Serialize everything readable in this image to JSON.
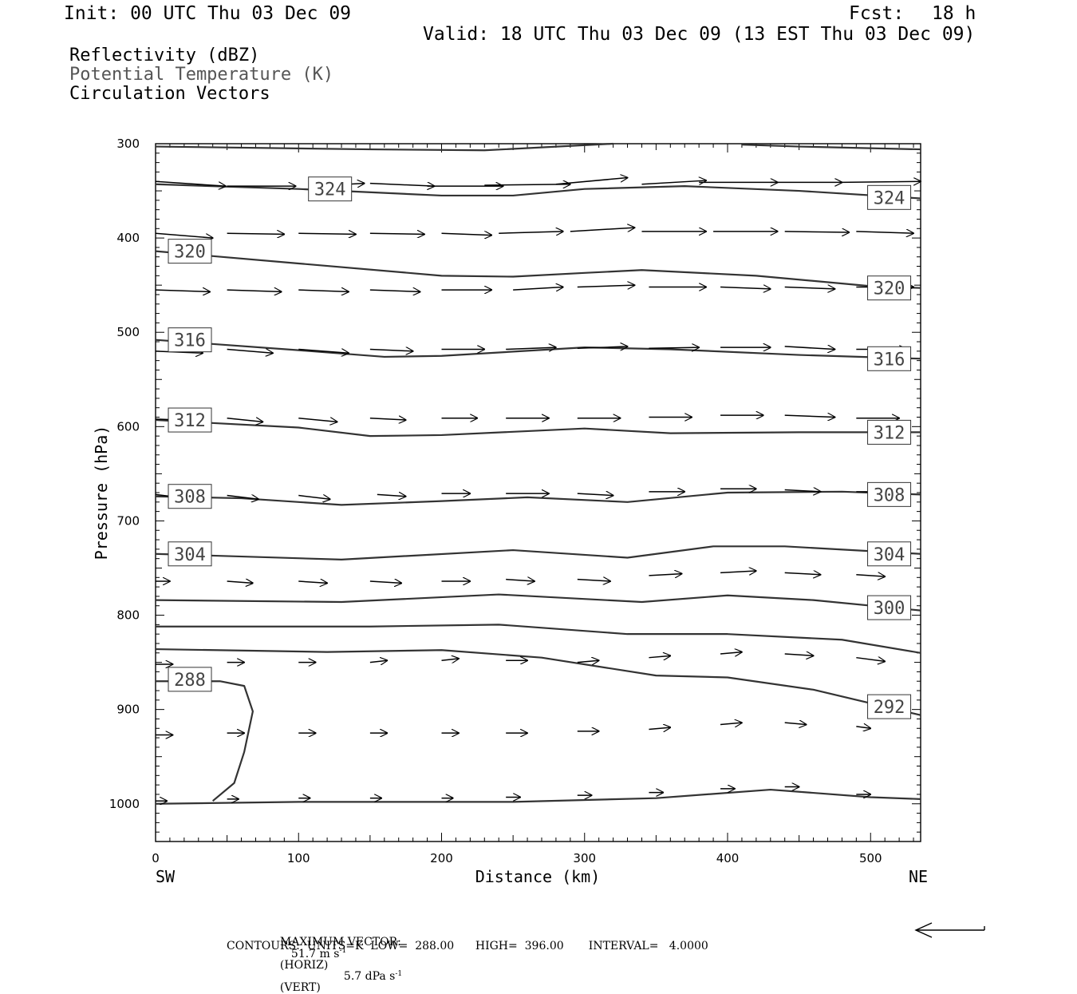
{
  "header": {
    "init": "Init: 00 UTC Thu 03 Dec 09",
    "fcst_label": "Fcst:",
    "fcst_value": "18 h",
    "valid": "Valid: 18 UTC Thu 03 Dec 09 (13 EST Thu 03 Dec 09)"
  },
  "legend": {
    "items": [
      "Reflectivity (dBZ)",
      "Potential Temperature (K)",
      "Circulation Vectors"
    ],
    "colors": [
      "#000000",
      "#555555",
      "#000000"
    ]
  },
  "footer": {
    "max_vector_label": "MAXIMUM VECTOR:",
    "horiz_value": "51.7 m s",
    "horiz_exp": "-1",
    "horiz_tag": "(HORIZ)",
    "vert_value": "5.7 dPa s",
    "vert_exp": "-1",
    "vert_tag": "(VERT)",
    "contours": "CONTOURS:  UNITS=K  LOW=  288.00      HIGH=  396.00       INTERVAL=   4.0000"
  },
  "chart_data": {
    "type": "line",
    "xlabel": "Distance (km)",
    "ylabel": "Pressure (hPa)",
    "xlim": [
      0,
      535
    ],
    "ylim": [
      1040,
      300
    ],
    "x_ticks": [
      0,
      100,
      200,
      300,
      400,
      500
    ],
    "y_ticks": [
      300,
      400,
      500,
      600,
      700,
      800,
      900,
      1000
    ],
    "x_end_labels": {
      "left": "SW",
      "right": "NE"
    },
    "contour_color": "#333333",
    "series": [
      {
        "label": "324",
        "points": [
          [
            0,
            343
          ],
          [
            100,
            348
          ],
          [
            200,
            355
          ],
          [
            250,
            355
          ],
          [
            300,
            348
          ],
          [
            370,
            345
          ],
          [
            450,
            350
          ],
          [
            535,
            358
          ]
        ]
      },
      {
        "label": "320",
        "points": [
          [
            0,
            414
          ],
          [
            100,
            427
          ],
          [
            200,
            440
          ],
          [
            250,
            441
          ],
          [
            300,
            437
          ],
          [
            340,
            434
          ],
          [
            420,
            440
          ],
          [
            500,
            451
          ],
          [
            535,
            453
          ]
        ]
      },
      {
        "label": "316",
        "points": [
          [
            0,
            508
          ],
          [
            100,
            519
          ],
          [
            160,
            526
          ],
          [
            200,
            525
          ],
          [
            300,
            516
          ],
          [
            360,
            518
          ],
          [
            450,
            524
          ],
          [
            535,
            528
          ]
        ]
      },
      {
        "label": "312",
        "points": [
          [
            0,
            593
          ],
          [
            100,
            601
          ],
          [
            150,
            610
          ],
          [
            200,
            609
          ],
          [
            300,
            602
          ],
          [
            360,
            607
          ],
          [
            450,
            606
          ],
          [
            535,
            606
          ]
        ]
      },
      {
        "label": "308",
        "points": [
          [
            0,
            674
          ],
          [
            60,
            676
          ],
          [
            130,
            683
          ],
          [
            200,
            679
          ],
          [
            260,
            675
          ],
          [
            330,
            680
          ],
          [
            400,
            670
          ],
          [
            480,
            669
          ],
          [
            535,
            672
          ]
        ]
      },
      {
        "label": "304",
        "points": [
          [
            0,
            735
          ],
          [
            130,
            741
          ],
          [
            250,
            731
          ],
          [
            330,
            739
          ],
          [
            390,
            727
          ],
          [
            440,
            727
          ],
          [
            535,
            735
          ]
        ]
      },
      {
        "label": "300",
        "points": [
          [
            0,
            784
          ],
          [
            130,
            786
          ],
          [
            240,
            778
          ],
          [
            340,
            786
          ],
          [
            400,
            779
          ],
          [
            460,
            784
          ],
          [
            535,
            795
          ]
        ]
      },
      {
        "label": "",
        "points": [
          [
            0,
            812
          ],
          [
            150,
            812
          ],
          [
            240,
            810
          ],
          [
            330,
            820
          ],
          [
            400,
            820
          ],
          [
            480,
            826
          ],
          [
            535,
            840
          ]
        ]
      },
      {
        "label": "292",
        "points": [
          [
            0,
            836
          ],
          [
            120,
            839
          ],
          [
            200,
            837
          ],
          [
            270,
            845
          ],
          [
            350,
            864
          ],
          [
            400,
            866
          ],
          [
            460,
            879
          ],
          [
            535,
            906
          ]
        ]
      },
      {
        "label": "288",
        "points": [
          [
            0,
            870
          ],
          [
            45,
            870
          ],
          [
            62,
            875
          ],
          [
            68,
            902
          ],
          [
            62,
            945
          ],
          [
            55,
            978
          ],
          [
            40,
            997
          ]
        ]
      },
      {
        "label": "",
        "points": [
          [
            0,
            1000
          ],
          [
            100,
            998
          ],
          [
            250,
            998
          ],
          [
            350,
            994
          ],
          [
            430,
            985
          ],
          [
            500,
            993
          ],
          [
            535,
            995
          ]
        ]
      },
      {
        "label": "",
        "points": [
          [
            0,
            303
          ],
          [
            150,
            306
          ],
          [
            230,
            307
          ],
          [
            320,
            300
          ]
        ]
      },
      {
        "label": "",
        "points": [
          [
            410,
            301
          ],
          [
            450,
            303
          ],
          [
            535,
            306
          ]
        ]
      }
    ],
    "vectors": [
      {
        "pressure": 345,
        "arrows": [
          [
            0,
            340,
            49,
            345
          ],
          [
            50,
            345,
            98,
            345
          ],
          [
            110,
            345,
            146,
            342
          ],
          [
            150,
            342,
            195,
            345
          ],
          [
            190,
            345,
            243,
            345
          ],
          [
            230,
            344,
            290,
            343
          ],
          [
            280,
            343,
            330,
            336
          ],
          [
            340,
            343,
            385,
            339
          ],
          [
            380,
            341,
            435,
            341
          ],
          [
            430,
            341,
            480,
            341
          ],
          [
            480,
            341,
            535,
            340
          ]
        ]
      },
      {
        "pressure": 395,
        "arrows": [
          [
            0,
            395,
            40,
            400
          ],
          [
            50,
            395,
            90,
            396
          ],
          [
            100,
            395,
            140,
            396
          ],
          [
            150,
            395,
            188,
            396
          ],
          [
            200,
            395,
            235,
            397
          ],
          [
            240,
            395,
            285,
            393
          ],
          [
            290,
            393,
            335,
            389
          ],
          [
            340,
            393,
            385,
            393
          ],
          [
            390,
            393,
            435,
            393
          ],
          [
            440,
            393,
            485,
            394
          ],
          [
            490,
            393,
            530,
            395
          ]
        ]
      },
      {
        "pressure": 455,
        "arrows": [
          [
            0,
            455,
            38,
            457
          ],
          [
            50,
            455,
            88,
            457
          ],
          [
            100,
            455,
            135,
            457
          ],
          [
            150,
            455,
            185,
            457
          ],
          [
            200,
            455,
            235,
            455
          ],
          [
            250,
            455,
            285,
            452
          ],
          [
            295,
            452,
            335,
            450
          ],
          [
            345,
            452,
            385,
            452
          ],
          [
            395,
            452,
            430,
            454
          ],
          [
            440,
            452,
            475,
            454
          ],
          [
            490,
            452,
            530,
            452
          ]
        ]
      },
      {
        "pressure": 520,
        "arrows": [
          [
            0,
            520,
            33,
            522
          ],
          [
            50,
            518,
            82,
            522
          ],
          [
            100,
            518,
            135,
            522
          ],
          [
            150,
            518,
            180,
            520
          ],
          [
            200,
            518,
            230,
            518
          ],
          [
            245,
            518,
            280,
            516
          ],
          [
            295,
            517,
            330,
            515
          ],
          [
            345,
            517,
            380,
            516
          ],
          [
            395,
            516,
            430,
            516
          ],
          [
            440,
            515,
            475,
            518
          ],
          [
            490,
            518,
            525,
            518
          ]
        ]
      },
      {
        "pressure": 593,
        "arrows": [
          [
            0,
            592,
            35,
            594
          ],
          [
            50,
            591,
            75,
            595
          ],
          [
            100,
            591,
            127,
            595
          ],
          [
            150,
            591,
            175,
            593
          ],
          [
            200,
            591,
            225,
            591
          ],
          [
            245,
            591,
            275,
            591
          ],
          [
            295,
            591,
            325,
            591
          ],
          [
            345,
            590,
            375,
            590
          ],
          [
            395,
            588,
            425,
            588
          ],
          [
            440,
            588,
            475,
            590
          ],
          [
            490,
            591,
            520,
            591
          ]
        ]
      },
      {
        "pressure": 675,
        "arrows": [
          [
            0,
            672,
            22,
            676
          ],
          [
            50,
            673,
            72,
            677
          ],
          [
            100,
            673,
            122,
            677
          ],
          [
            155,
            672,
            175,
            674
          ],
          [
            200,
            671,
            220,
            671
          ],
          [
            245,
            671,
            275,
            671
          ],
          [
            295,
            671,
            320,
            673
          ],
          [
            345,
            669,
            370,
            669
          ],
          [
            395,
            666,
            420,
            666
          ],
          [
            440,
            667,
            465,
            669
          ],
          [
            490,
            669,
            515,
            669
          ]
        ]
      },
      {
        "pressure": 765,
        "arrows": [
          [
            0,
            764,
            10,
            764
          ],
          [
            50,
            764,
            68,
            766
          ],
          [
            100,
            764,
            120,
            766
          ],
          [
            150,
            764,
            172,
            766
          ],
          [
            200,
            764,
            220,
            764
          ],
          [
            245,
            762,
            265,
            764
          ],
          [
            295,
            762,
            318,
            764
          ],
          [
            345,
            758,
            368,
            756
          ],
          [
            395,
            755,
            420,
            753
          ],
          [
            440,
            755,
            465,
            757
          ],
          [
            490,
            757,
            510,
            759
          ]
        ]
      },
      {
        "pressure": 850,
        "arrows": [
          [
            0,
            852,
            12,
            852
          ],
          [
            50,
            850,
            62,
            850
          ],
          [
            100,
            850,
            112,
            850
          ],
          [
            150,
            850,
            162,
            848
          ],
          [
            200,
            848,
            212,
            846
          ],
          [
            245,
            848,
            260,
            848
          ],
          [
            295,
            850,
            310,
            848
          ],
          [
            345,
            845,
            360,
            843
          ],
          [
            395,
            841,
            410,
            839
          ],
          [
            440,
            841,
            460,
            843
          ],
          [
            490,
            845,
            510,
            849
          ]
        ]
      },
      {
        "pressure": 925,
        "arrows": [
          [
            0,
            927,
            12,
            927
          ],
          [
            50,
            925,
            62,
            925
          ],
          [
            100,
            925,
            112,
            925
          ],
          [
            150,
            925,
            162,
            925
          ],
          [
            200,
            925,
            212,
            925
          ],
          [
            245,
            925,
            260,
            925
          ],
          [
            295,
            923,
            310,
            923
          ],
          [
            345,
            921,
            360,
            919
          ],
          [
            395,
            916,
            410,
            914
          ],
          [
            440,
            914,
            455,
            916
          ],
          [
            490,
            918,
            500,
            920
          ]
        ]
      },
      {
        "pressure": 998,
        "arrows": [
          [
            0,
            997,
            8,
            997
          ],
          [
            50,
            995,
            58,
            995
          ],
          [
            100,
            994,
            108,
            994
          ],
          [
            150,
            994,
            158,
            994
          ],
          [
            200,
            994,
            208,
            994
          ],
          [
            245,
            993,
            255,
            993
          ],
          [
            295,
            991,
            305,
            991
          ],
          [
            345,
            988,
            355,
            988
          ],
          [
            395,
            984,
            405,
            984
          ],
          [
            440,
            982,
            450,
            982
          ],
          [
            490,
            990,
            500,
            990
          ]
        ]
      }
    ]
  }
}
